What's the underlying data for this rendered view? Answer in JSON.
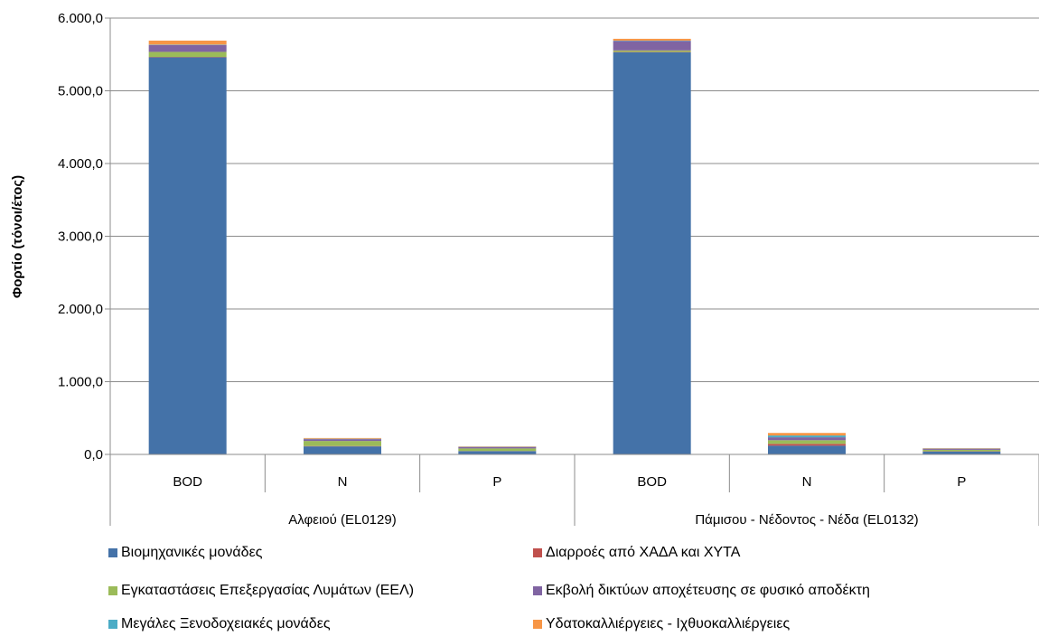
{
  "chart_data": {
    "type": "bar",
    "stacked": true,
    "ylabel": "Φορτίο (τόνοι/έτος)",
    "ylim": [
      0,
      6000
    ],
    "yticks": [
      "0,0",
      "1.000,0",
      "2.000,0",
      "3.000,0",
      "4.000,0",
      "5.000,0",
      "6.000,0"
    ],
    "grid": true,
    "legend_position": "bottom",
    "groups": [
      {
        "label": "Αλφειού (EL0129)",
        "categories": [
          "BOD",
          "N",
          "P"
        ]
      },
      {
        "label": "Πάμισου - Νέδοντος - Νέδα (EL0132)",
        "categories": [
          "BOD",
          "N",
          "P"
        ]
      }
    ],
    "categories": [
      "BOD",
      "N",
      "P",
      "BOD",
      "N",
      "P"
    ],
    "series": [
      {
        "name": "Βιομηχανικές μονάδες",
        "color": "#4472A8",
        "values": [
          5460,
          110,
          45,
          5530,
          120,
          40
        ]
      },
      {
        "name": "Διαρροές από ΧΑΔΑ και ΧΥΤΑ",
        "color": "#C0504D",
        "values": [
          5,
          5,
          2,
          5,
          25,
          3
        ]
      },
      {
        "name": "Εγκαταστάσεις Επεξεργασίας Λυμάτων (ΕΕΛ)",
        "color": "#9BBB59",
        "values": [
          70,
          70,
          35,
          20,
          50,
          20
        ]
      },
      {
        "name": "Εκβολή δικτύων αποχέτευσης σε φυσικό αποδέκτη",
        "color": "#8064A2",
        "values": [
          95,
          25,
          20,
          130,
          40,
          15
        ]
      },
      {
        "name": "Μεγάλες Ξενοδοχειακές μονάδες",
        "color": "#4BACC6",
        "values": [
          5,
          5,
          3,
          5,
          25,
          3
        ]
      },
      {
        "name": "Υδατοκαλλιέργειες - Ιχθυοκαλλιέργειες",
        "color": "#F79646",
        "values": [
          55,
          10,
          5,
          25,
          35,
          5
        ]
      }
    ]
  }
}
